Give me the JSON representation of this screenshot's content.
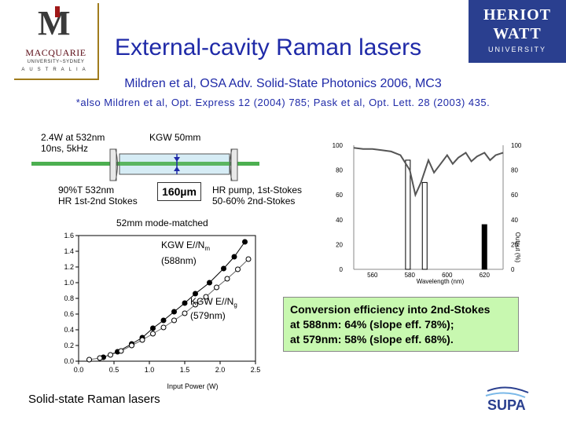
{
  "header": {
    "title": "External-cavity Raman lasers",
    "reference_main": "Mildren et al, OSA Adv. Solid-State Photonics 2006, MC3",
    "reference_also": "*also Mildren et al, Opt. Express 12 (2004) 785; Pask et al, Opt. Lett. 28 (2003) 435.",
    "logo_left": {
      "name": "MACQUARIE",
      "sub": "UNIVERSITY~SYDNEY",
      "country": "AUSTRALIA"
    },
    "logo_right": {
      "line1": "HERIOT",
      "line2": "WATT",
      "line3": "UNIVERSITY"
    }
  },
  "cavity": {
    "pump": "2.4W at 532nm\n10ns, 5kHz",
    "crystal": "KGW 50mm",
    "input_mirror": "90%T 532nm\nHR 1st-2nd Stokes",
    "spot": "160µm",
    "output_mirror": "HR pump, 1st-Stokes\n50-60% 2nd-Stokes",
    "cavity_length": "52mm mode-matched"
  },
  "chart_data": [
    {
      "type": "scatter",
      "title": "",
      "xlabel": "Input Power (W)",
      "ylabel": "",
      "xlim": [
        0,
        2.5
      ],
      "ylim": [
        0,
        1.6
      ],
      "x_ticks": [
        "0.0",
        "0.5",
        "1.0",
        "1.5",
        "2.0",
        "2.5"
      ],
      "y_ticks": [
        "0.0",
        "0.2",
        "0.4",
        "0.6",
        "0.8",
        "1.0",
        "1.2",
        "1.4",
        "1.6"
      ],
      "series": [
        {
          "name": "KGW E//Nm (588nm)",
          "marker": "filled",
          "x": [
            0.35,
            0.55,
            0.75,
            0.9,
            1.05,
            1.2,
            1.35,
            1.5,
            1.65,
            1.85,
            2.05,
            2.2,
            2.35
          ],
          "y": [
            0.05,
            0.12,
            0.22,
            0.3,
            0.42,
            0.52,
            0.63,
            0.74,
            0.86,
            1.0,
            1.18,
            1.33,
            1.52
          ]
        },
        {
          "name": "KGW E//Ng (579nm)",
          "marker": "open",
          "x": [
            0.15,
            0.3,
            0.45,
            0.6,
            0.75,
            0.9,
            1.05,
            1.2,
            1.35,
            1.5,
            1.65,
            1.8,
            1.95,
            2.1,
            2.25,
            2.4
          ],
          "y": [
            0.02,
            0.04,
            0.08,
            0.13,
            0.2,
            0.27,
            0.35,
            0.43,
            0.52,
            0.61,
            0.72,
            0.82,
            0.94,
            1.05,
            1.17,
            1.3
          ]
        }
      ],
      "annotations": [
        {
          "label_main": "KGW E//N",
          "label_sub": "m",
          "label_line2": "(588nm)"
        },
        {
          "label_main": "KGW E//N",
          "label_sub": "g",
          "label_line2": "(579nm)"
        }
      ]
    },
    {
      "type": "line",
      "title": "",
      "xlabel": "Wavelength (nm)",
      "ylabel_right": "Output (%)",
      "xlim": [
        550,
        630
      ],
      "ylim": [
        0,
        100
      ],
      "x_ticks": [
        "560",
        "580",
        "600",
        "620"
      ],
      "y_ticks_left": [
        "0",
        "20",
        "40",
        "60",
        "80",
        "100"
      ],
      "y_ticks_right": [
        "0",
        "20",
        "40",
        "60",
        "80",
        "100"
      ],
      "series": [
        {
          "name": "transmission",
          "x": [
            550,
            555,
            560,
            565,
            570,
            575,
            580,
            583,
            586,
            590,
            593,
            596,
            600,
            603,
            606,
            610,
            613,
            616,
            620,
            623,
            626,
            630
          ],
          "y": [
            98,
            97,
            97,
            96,
            95,
            92,
            80,
            60,
            70,
            88,
            78,
            84,
            92,
            85,
            90,
            94,
            87,
            91,
            94,
            88,
            92,
            94
          ]
        }
      ],
      "bars": [
        {
          "x": 579,
          "value": 88,
          "fill": "open"
        },
        {
          "x": 588,
          "value": 70,
          "fill": "open"
        },
        {
          "x": 620,
          "value": 36,
          "fill": "filled"
        }
      ]
    }
  ],
  "conversion": {
    "line1": "Conversion efficiency into 2nd-Stokes",
    "line2": "at 588nm: 64% (slope eff. 78%);",
    "line3": "at 579nm: 58% (slope eff. 68%)."
  },
  "footer": {
    "text": "Solid-state Raman lasers",
    "supa_logo": "SUPA"
  },
  "colors": {
    "title_blue": "#1f2aa8",
    "heriot_watt_blue": "#2a3f8f",
    "conversion_box_green": "#c8f8b0",
    "pump_beam_green": "#4caf50",
    "crystal_blue": "#d6ecf5"
  }
}
